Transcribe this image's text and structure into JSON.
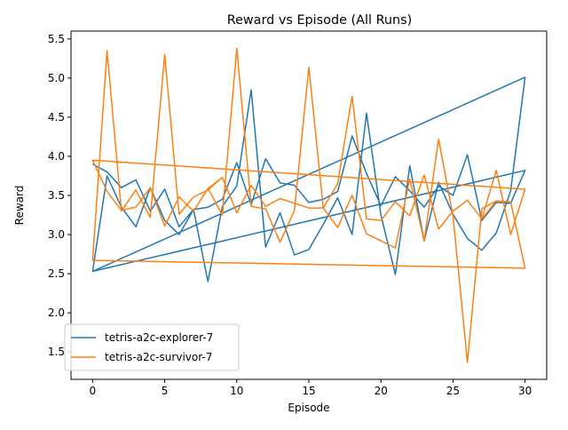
{
  "colors": {
    "explorer": "#1f77b4",
    "survivor": "#ff7f0e",
    "axis": "#000000",
    "legend_edge": "#cccccc"
  },
  "chart_data": {
    "type": "line",
    "title": "Reward vs Episode (All Runs)",
    "xlabel": "Episode",
    "ylabel": "Reward",
    "xlim": [
      -1.5,
      31.5
    ],
    "ylim": [
      1.15,
      5.6
    ],
    "xticks": [
      0,
      5,
      10,
      15,
      20,
      25,
      30
    ],
    "xtick_labels": [
      "0",
      "5",
      "10",
      "15",
      "20",
      "25",
      "30"
    ],
    "yticks": [
      1.5,
      2.0,
      2.5,
      3.0,
      3.5,
      4.0,
      4.5,
      5.0,
      5.5
    ],
    "ytick_labels": [
      "1.5",
      "2.0",
      "2.5",
      "3.0",
      "3.5",
      "4.0",
      "4.5",
      "5.0",
      "5.5"
    ],
    "grid": false,
    "legend_position": "lower-left",
    "series": [
      {
        "name": "tetris-a2c-explorer-7",
        "color": "#1f77b4",
        "runs": [
          [
            [
              0,
              3.9
            ],
            [
              1,
              3.8
            ],
            [
              2,
              3.6
            ],
            [
              3,
              3.7
            ],
            [
              4,
              3.3
            ],
            [
              5,
              3.58
            ],
            [
              6,
              3.1
            ],
            [
              7,
              3.32
            ],
            [
              8,
              3.35
            ],
            [
              9,
              3.45
            ],
            [
              10,
              3.92
            ],
            [
              11,
              3.38
            ],
            [
              12,
              3.97
            ],
            [
              13,
              3.66
            ],
            [
              14,
              3.63
            ],
            [
              15,
              3.41
            ],
            [
              16,
              3.45
            ],
            [
              17,
              3.55
            ],
            [
              18,
              4.26
            ],
            [
              19,
              3.78
            ],
            [
              20,
              3.37
            ],
            [
              21,
              3.74
            ],
            [
              22,
              3.56
            ],
            [
              23,
              3.35
            ],
            [
              24,
              3.62
            ],
            [
              25,
              3.5
            ],
            [
              26,
              4.02
            ],
            [
              27,
              3.18
            ],
            [
              28,
              3.41
            ],
            [
              29,
              3.4
            ],
            [
              30,
              3.82
            ]
          ],
          [
            [
              0,
              2.53
            ],
            [
              1,
              3.75
            ],
            [
              2,
              3.35
            ],
            [
              3,
              3.1
            ],
            [
              4,
              3.6
            ],
            [
              5,
              3.18
            ],
            [
              6,
              3.0
            ],
            [
              7,
              3.32
            ],
            [
              8,
              2.4
            ],
            [
              9,
              3.36
            ],
            [
              10,
              3.62
            ],
            [
              11,
              4.85
            ],
            [
              12,
              2.84
            ],
            [
              13,
              3.28
            ],
            [
              14,
              2.74
            ],
            [
              15,
              2.81
            ],
            [
              16,
              3.13
            ],
            [
              17,
              3.47
            ],
            [
              18,
              3.0
            ],
            [
              19,
              4.55
            ],
            [
              20,
              3.25
            ],
            [
              21,
              2.49
            ],
            [
              22,
              3.88
            ],
            [
              23,
              2.92
            ],
            [
              24,
              3.67
            ],
            [
              25,
              3.26
            ],
            [
              26,
              2.95
            ],
            [
              27,
              2.8
            ],
            [
              28,
              3.02
            ],
            [
              29,
              3.56
            ],
            [
              30,
              5.01
            ]
          ],
          [
            [
              0,
              2.53
            ],
            [
              1,
              3.75
            ],
            [
              2,
              3.35
            ],
            [
              3,
              3.1
            ],
            [
              4,
              3.6
            ],
            [
              5,
              3.18
            ],
            [
              6,
              3.0
            ],
            [
              7,
              3.32
            ],
            [
              8,
              2.4
            ],
            [
              9,
              3.36
            ],
            [
              10,
              3.62
            ],
            [
              11,
              4.85
            ],
            [
              12,
              2.84
            ],
            [
              13,
              3.28
            ],
            [
              14,
              2.74
            ],
            [
              15,
              2.81
            ],
            [
              16,
              3.13
            ],
            [
              17,
              3.47
            ],
            [
              18,
              3.0
            ],
            [
              19,
              4.55
            ],
            [
              20,
              3.25
            ],
            [
              21,
              2.49
            ],
            [
              22,
              3.88
            ],
            [
              23,
              2.92
            ],
            [
              24,
              3.67
            ],
            [
              25,
              3.26
            ],
            [
              26,
              2.95
            ],
            [
              27,
              2.8
            ],
            [
              28,
              3.02
            ],
            [
              29,
              3.56
            ],
            [
              30,
              5.01
            ]
          ]
        ]
      },
      {
        "name": "tetris-a2c-survivor-7",
        "color": "#ff7f0e",
        "runs": [
          [
            [
              0,
              3.95
            ],
            [
              1,
              3.55
            ],
            [
              2,
              3.31
            ],
            [
              3,
              3.35
            ],
            [
              4,
              3.6
            ],
            [
              5,
              3.11
            ],
            [
              6,
              3.48
            ],
            [
              7,
              3.3
            ],
            [
              8,
              3.59
            ],
            [
              9,
              3.25
            ],
            [
              10,
              5.38
            ],
            [
              11,
              3.36
            ],
            [
              12,
              3.33
            ],
            [
              13,
              2.9
            ],
            [
              14,
              3.31
            ],
            [
              15,
              5.14
            ],
            [
              16,
              3.34
            ],
            [
              17,
              3.09
            ],
            [
              18,
              3.5
            ],
            [
              19,
              3.01
            ],
            [
              20,
              2.92
            ],
            [
              21,
              2.83
            ],
            [
              22,
              3.71
            ],
            [
              23,
              2.92
            ],
            [
              24,
              4.22
            ],
            [
              25,
              3.24
            ],
            [
              26,
              1.37
            ],
            [
              27,
              3.33
            ],
            [
              28,
              3.43
            ],
            [
              29,
              3.42
            ],
            [
              30,
              2.57
            ]
          ],
          [
            [
              0,
              2.67
            ],
            [
              1,
              5.35
            ],
            [
              2,
              3.3
            ],
            [
              3,
              3.57
            ],
            [
              4,
              3.22
            ],
            [
              5,
              5.3
            ],
            [
              6,
              3.26
            ],
            [
              7,
              3.48
            ],
            [
              8,
              3.57
            ],
            [
              9,
              3.73
            ],
            [
              10,
              3.28
            ],
            [
              11,
              3.63
            ],
            [
              12,
              3.36
            ],
            [
              13,
              3.46
            ],
            [
              14,
              3.4
            ],
            [
              15,
              3.34
            ],
            [
              16,
              3.34
            ],
            [
              17,
              3.65
            ],
            [
              18,
              4.77
            ],
            [
              19,
              3.2
            ],
            [
              20,
              3.18
            ],
            [
              21,
              3.42
            ],
            [
              22,
              3.24
            ],
            [
              23,
              3.76
            ],
            [
              24,
              3.07
            ],
            [
              25,
              3.3
            ],
            [
              26,
              3.44
            ],
            [
              27,
              3.2
            ],
            [
              28,
              3.82
            ],
            [
              29,
              3.0
            ],
            [
              30,
              3.58
            ]
          ],
          [
            [
              0,
              3.95
            ],
            [
              1,
              3.55
            ],
            [
              2,
              3.31
            ],
            [
              3,
              3.35
            ],
            [
              4,
              3.6
            ],
            [
              5,
              3.11
            ],
            [
              6,
              3.48
            ],
            [
              7,
              3.3
            ],
            [
              8,
              3.59
            ],
            [
              9,
              3.73
            ],
            [
              10,
              3.28
            ],
            [
              11,
              3.63
            ],
            [
              12,
              3.36
            ],
            [
              13,
              3.46
            ],
            [
              14,
              3.4
            ],
            [
              15,
              3.34
            ],
            [
              16,
              3.34
            ],
            [
              17,
              3.65
            ],
            [
              18,
              4.77
            ],
            [
              19,
              3.2
            ],
            [
              20,
              3.18
            ],
            [
              21,
              3.42
            ],
            [
              22,
              3.24
            ],
            [
              23,
              3.76
            ],
            [
              24,
              3.07
            ],
            [
              25,
              3.3
            ],
            [
              26,
              3.44
            ],
            [
              27,
              3.2
            ],
            [
              28,
              3.43
            ],
            [
              29,
              3.42
            ],
            [
              30,
              2.57
            ]
          ]
        ]
      }
    ]
  }
}
